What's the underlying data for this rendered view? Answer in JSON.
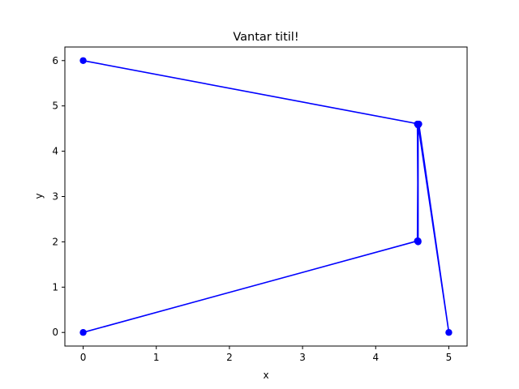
{
  "chart_data": {
    "type": "line",
    "title": "Vantar titil!",
    "xlabel": "x",
    "ylabel": "y",
    "xlim": [
      -0.25,
      5.25
    ],
    "ylim": [
      -0.3,
      6.3
    ],
    "xticks": [
      0,
      1,
      2,
      3,
      4,
      5
    ],
    "yticks": [
      0,
      1,
      2,
      3,
      4,
      5,
      6
    ],
    "grid": false,
    "series": [
      {
        "color": "#0000ff",
        "marker": "circle",
        "x": [
          0,
          4.57,
          4.58,
          4.58,
          4.57,
          4.58,
          4.58,
          5,
          4.59,
          0
        ],
        "y": [
          0,
          2.02,
          4.58,
          2.0,
          4.6,
          2.02,
          4.58,
          0,
          4.6,
          6
        ]
      }
    ]
  }
}
